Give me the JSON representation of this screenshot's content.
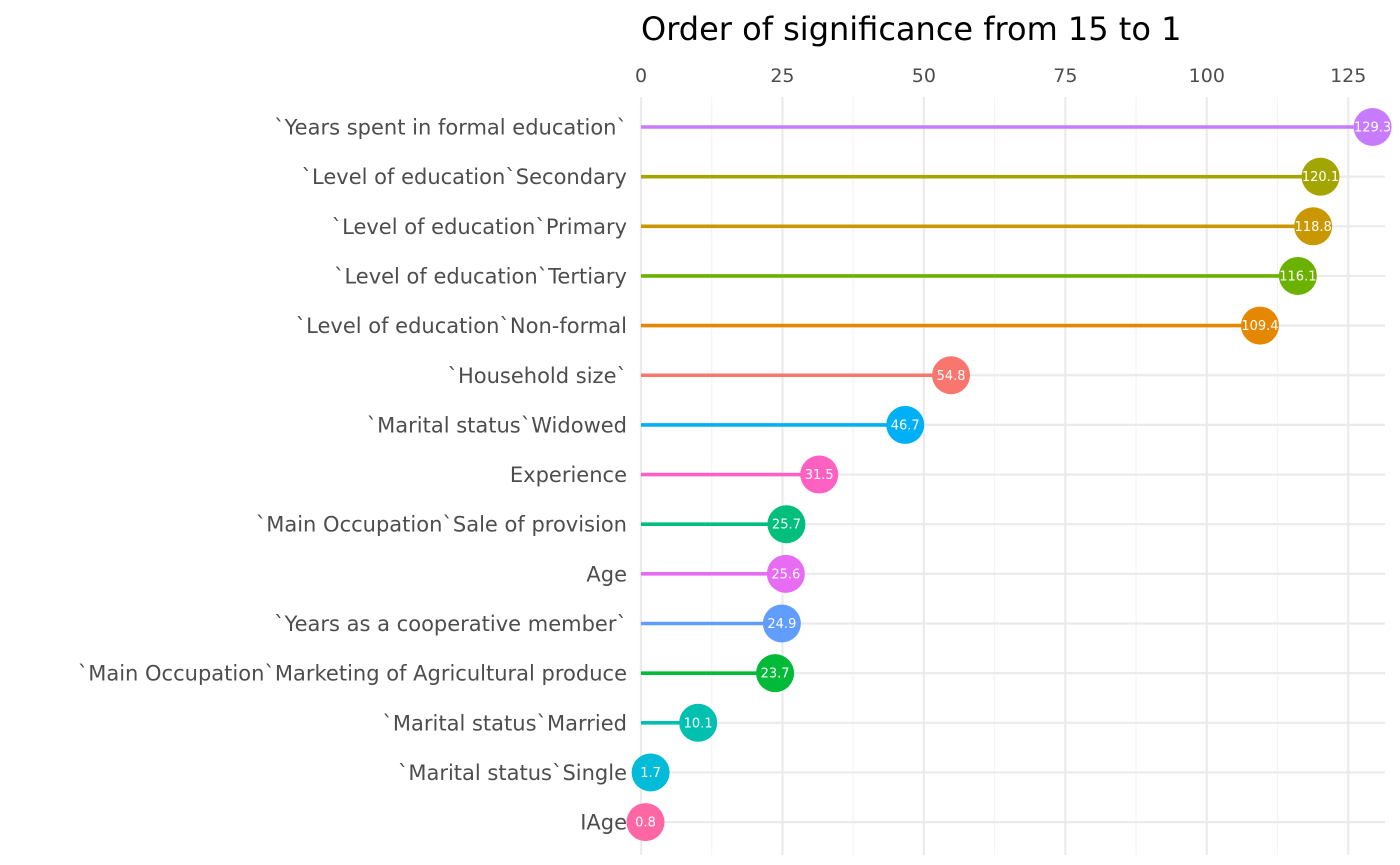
{
  "chart_data": {
    "type": "lollipop",
    "title": "Order of significance from 15 to 1",
    "xlabel": "",
    "ylabel": "",
    "xlim": [
      0,
      131.5
    ],
    "x_ticks": [
      0,
      25,
      50,
      75,
      100,
      125
    ],
    "x_axis_position": "top",
    "grid": true,
    "legend": "none",
    "categories": [
      "`Years spent in formal education`",
      "`Level  of education`Secondary",
      "`Level  of education`Primary",
      "`Level  of education`Tertiary",
      "`Level  of education`Non-formal",
      "`Household size`",
      "`Marital status`Widowed",
      "Experience",
      "`Main Occupation`Sale of provision",
      "Age",
      "`Years as a cooperative member`",
      "`Main Occupation`Marketing of Agricultural produce",
      "`Marital status`Married",
      "`Marital status`Single",
      "IAge"
    ],
    "values": [
      129.3,
      120.1,
      118.8,
      116.1,
      109.4,
      54.8,
      46.7,
      31.5,
      25.7,
      25.6,
      24.9,
      23.7,
      10.1,
      1.7,
      0.8
    ],
    "value_labels": [
      "129.3",
      "120.1",
      "118.8",
      "116.1",
      "109.4",
      "54.8",
      "46.7",
      "31.5",
      "25.7",
      "25.6",
      "24.9",
      "23.7",
      "10.1",
      "1.7",
      "0.8"
    ],
    "colors": [
      "#C77CFF",
      "#A3A500",
      "#C99800",
      "#6BB100",
      "#E58700",
      "#F8766D",
      "#00B0F6",
      "#FF61C3",
      "#00BF7D",
      "#E76BF3",
      "#619CFF",
      "#00BA38",
      "#00C0AF",
      "#00BCD8",
      "#FF67A4"
    ]
  }
}
